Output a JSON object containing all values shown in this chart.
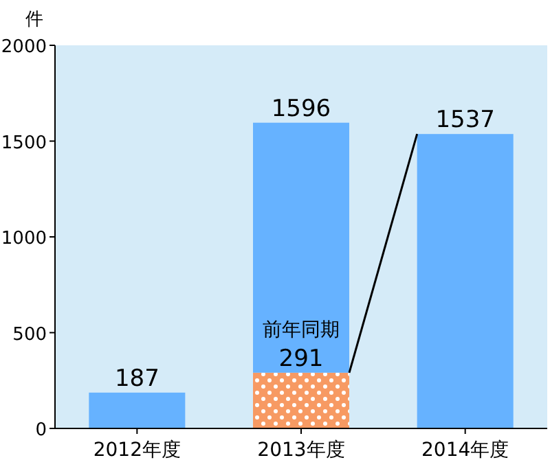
{
  "chart_data": {
    "type": "bar",
    "ylabel": "件",
    "categories": [
      "2012年度",
      "2013年度",
      "2014年度"
    ],
    "stacked": true,
    "ylim": [
      0,
      2000
    ],
    "yticks": [
      0,
      500,
      1000,
      1500,
      2000
    ],
    "grid": false,
    "series": [
      {
        "name": "前年同期",
        "color": "#f79a63",
        "values": [
          null,
          291,
          null
        ],
        "value_labels": [
          null,
          "291",
          null
        ]
      },
      {
        "color": "#66b2ff",
        "values": [
          187,
          1305,
          1537
        ]
      }
    ],
    "totals": [
      "187",
      "1596",
      "1537"
    ]
  }
}
